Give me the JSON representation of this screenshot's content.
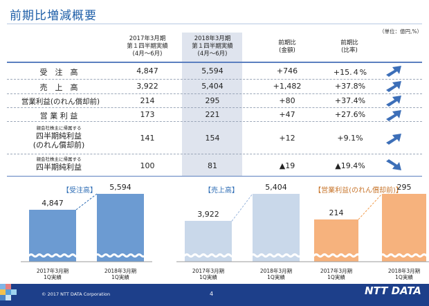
{
  "title": "前期比増減概要",
  "unit": "（単位：億円,%）",
  "columns": {
    "prev": [
      "2017年3月期",
      "第１四半期実績",
      "(4月～6月)"
    ],
    "curr": [
      "2018年3月期",
      "第１四半期実績",
      "(4月～6月)"
    ],
    "diff_amount": [
      "前期比",
      "(金額)"
    ],
    "diff_ratio": [
      "前期比",
      "(比率)"
    ]
  },
  "rows": [
    {
      "label": "受　注　高",
      "prev": "4,847",
      "curr": "5,594",
      "diff": "+746",
      "ratio": "+15.４%",
      "arrow": "up"
    },
    {
      "label": "売　上　高",
      "prev": "3,922",
      "curr": "5,404",
      "diff": "+1,482",
      "ratio": "+37.8%",
      "arrow": "up"
    },
    {
      "label": "営業利益(のれん償却前)",
      "prev": "214",
      "curr": "295",
      "diff": "+80",
      "ratio": "+37.4%",
      "arrow": "up"
    },
    {
      "label": "営 業 利 益",
      "prev": "173",
      "curr": "221",
      "diff": "+47",
      "ratio": "+27.6%",
      "arrow": "up"
    },
    {
      "label_small": "親会社株主に帰属する",
      "label": "四半期純利益",
      "label2": "(のれん償却前)",
      "prev": "141",
      "curr": "154",
      "diff": "+12",
      "ratio": "+9.1%",
      "arrow": "up"
    },
    {
      "label_small": "親会社株主に帰属する",
      "label": "四半期純利益",
      "prev": "100",
      "curr": "81",
      "diff": "▲19",
      "ratio": "▲19.4%",
      "arrow": "down"
    }
  ],
  "chart_data": [
    {
      "type": "bar",
      "title": "【受注高】",
      "categories": [
        "2017年3月期 1Q実績",
        "2018年3月期 1Q実績"
      ],
      "values": [
        4847,
        5594
      ],
      "labels": [
        "4,847",
        "5,594"
      ],
      "color": "#6c9bd2",
      "cat_lines": [
        [
          "2017年3月期",
          "1Q実績"
        ],
        [
          "2018年3月期",
          "1Q実績"
        ]
      ]
    },
    {
      "type": "bar",
      "title": "【売上高】",
      "categories": [
        "2017年3月期 1Q実績",
        "2018年3月期 1Q実績"
      ],
      "values": [
        3922,
        5404
      ],
      "labels": [
        "3,922",
        "5,404"
      ],
      "color": "#c9d8ea",
      "cat_lines": [
        [
          "2017年3月期",
          "1Q実績"
        ],
        [
          "2018年3月期",
          "1Q実績"
        ]
      ]
    },
    {
      "type": "bar",
      "title": "【営業利益(のれん償却前)】",
      "categories": [
        "2017年3月期 1Q実績",
        "2018年3月期 1Q実績"
      ],
      "values": [
        214,
        295
      ],
      "labels": [
        "214",
        "295"
      ],
      "color": "#f6b27d",
      "cat_lines": [
        [
          "2017年3月期",
          "1Q実績"
        ],
        [
          "2018年3月期",
          "1Q実績"
        ]
      ]
    }
  ],
  "footer": {
    "copyright": "© 2017 NTT DATA Corporation",
    "page": "4",
    "logo": "NTT DATA"
  },
  "colors": {
    "title": "#1f5fa8",
    "footer": "#1d3f8a",
    "arrow": "#3d6fb8"
  }
}
